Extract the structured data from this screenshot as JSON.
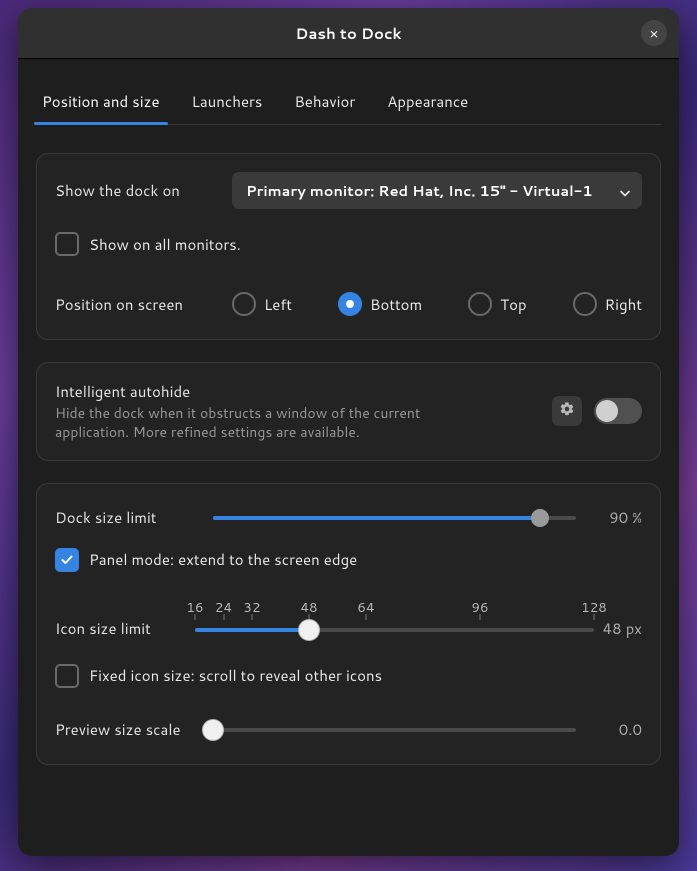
{
  "window": {
    "title": "Dash to Dock"
  },
  "tabs": {
    "items": [
      "Position and size",
      "Launchers",
      "Behavior",
      "Appearance"
    ],
    "active_index": 0
  },
  "accent_color": "#3584e4",
  "monitor": {
    "label": "Show the dock on",
    "selected": "Primary monitor: Red Hat, Inc. 15\" - Virtual-1"
  },
  "show_all": {
    "label": "Show on all monitors.",
    "checked": false
  },
  "position": {
    "label": "Position on screen",
    "options": [
      "Left",
      "Bottom",
      "Top",
      "Right"
    ],
    "selected_index": 1
  },
  "autohide": {
    "title": "Intelligent autohide",
    "description": "Hide the dock when it obstructs a window of the current application. More refined settings are available.",
    "enabled": false
  },
  "dock_size": {
    "label": "Dock size limit",
    "percent": 90,
    "value_text": "90 %",
    "track_color": "#4a4a4a",
    "fill_color": "#3584e4",
    "thumb_color": "#9a9a9a"
  },
  "panel_mode": {
    "label": "Panel mode: extend to the screen edge",
    "checked": true
  },
  "icon_size": {
    "label": "Icon size limit",
    "track_color": "#4a4a4a",
    "fill_color": "#3584e4",
    "thumb_color": "#f0f0f0",
    "min": 16,
    "max": 128,
    "value": 48,
    "value_text": "48 px",
    "ticks": [
      {
        "v": 16,
        "label": "16"
      },
      {
        "v": 24,
        "label": "24"
      },
      {
        "v": 32,
        "label": "32"
      },
      {
        "v": 48,
        "label": "48"
      },
      {
        "v": 64,
        "label": "64"
      },
      {
        "v": 96,
        "label": "96"
      },
      {
        "v": 128,
        "label": "128"
      }
    ]
  },
  "fixed_icon": {
    "label": "Fixed icon size: scroll to reveal other icons",
    "checked": false
  },
  "preview_scale": {
    "label": "Preview size scale",
    "value": 0.0,
    "value_text": "0.0",
    "percent": 0,
    "track_color": "#4a4a4a",
    "thumb_color": "#f0f0f0"
  }
}
